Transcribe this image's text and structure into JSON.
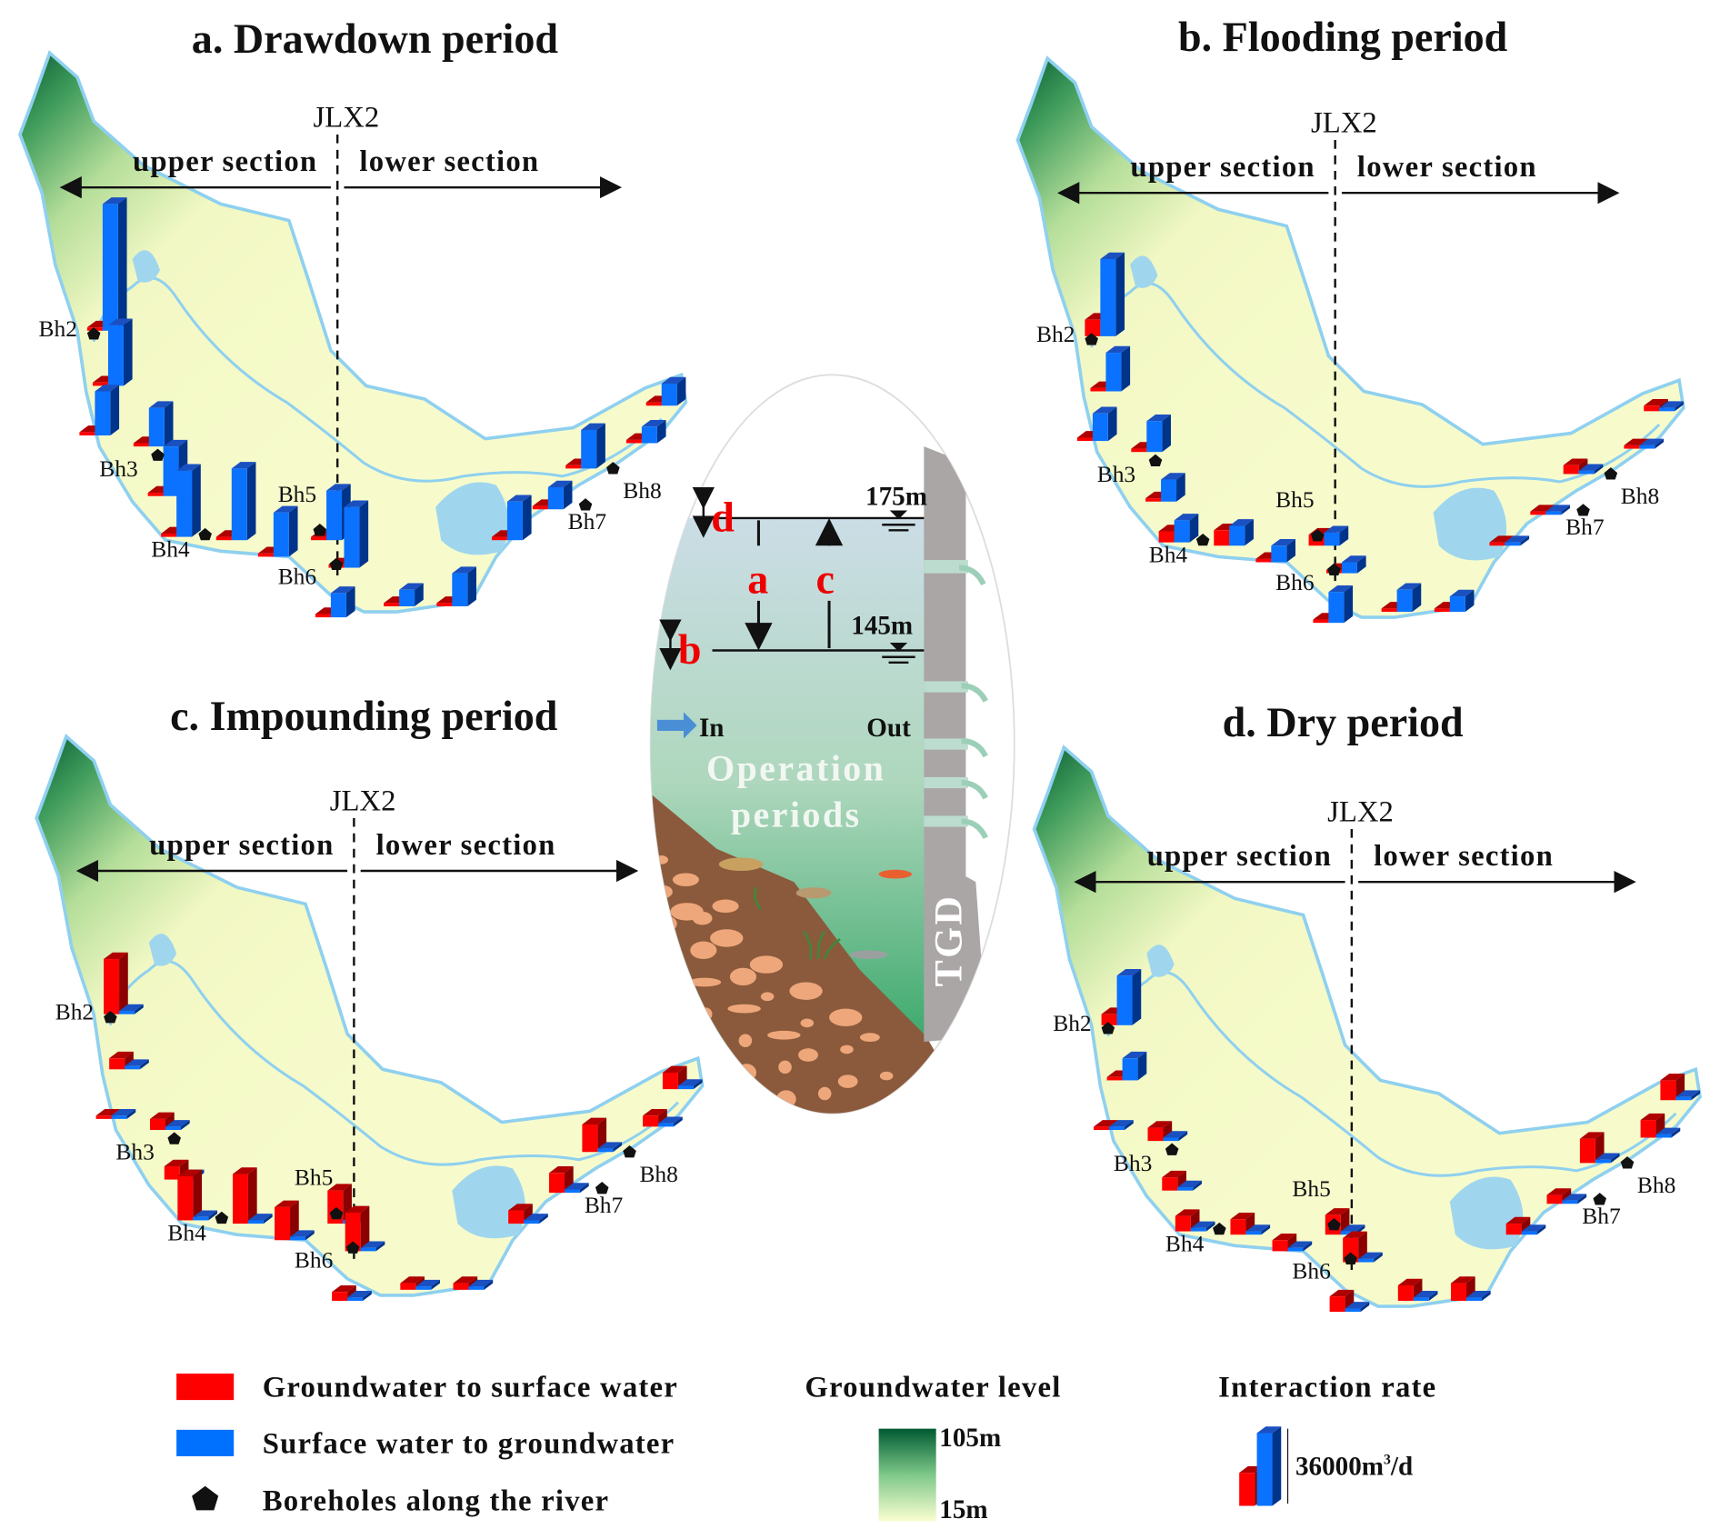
{
  "panels": [
    {
      "id": "a",
      "title": "a. Drawdown period",
      "station": "JLX2",
      "upper": "upper section",
      "lower": "lower section"
    },
    {
      "id": "b",
      "title": "b. Flooding period",
      "station": "JLX2",
      "upper": "upper section",
      "lower": "lower section"
    },
    {
      "id": "c",
      "title": "c. Impounding period",
      "station": "JLX2",
      "upper": "upper section",
      "lower": "lower section"
    },
    {
      "id": "d",
      "title": "d. Dry period",
      "station": "JLX2",
      "upper": "upper section",
      "lower": "lower section"
    }
  ],
  "boreholes": [
    "Bh2",
    "Bh3",
    "Bh4",
    "Bh5",
    "Bh6",
    "Bh7",
    "Bh8"
  ],
  "center": {
    "level_high": "175m",
    "level_low": "145m",
    "markers": {
      "a": "a",
      "b": "b",
      "c": "c",
      "d": "d"
    },
    "inflow": "In",
    "outflow": "Out",
    "caption_line1": "Operation",
    "caption_line2": "periods",
    "dam": "TGD"
  },
  "legend": {
    "gw_to_sw": "Groundwater to surface water",
    "sw_to_gw": "Surface water to groundwater",
    "boreholes": "Boreholes along the river",
    "level_title": "Groundwater level",
    "level_max": "105m",
    "level_min": "15m",
    "rate_title": "Interaction rate",
    "rate_value": "36000m",
    "rate_sup": "3",
    "rate_unit": "/d"
  },
  "colors": {
    "gw_to_sw": "#ff0000",
    "sw_to_gw": "#0070ff",
    "river": "#8fd0ef",
    "level_high": "#005a32",
    "level_low": "#f7fcc8"
  }
}
